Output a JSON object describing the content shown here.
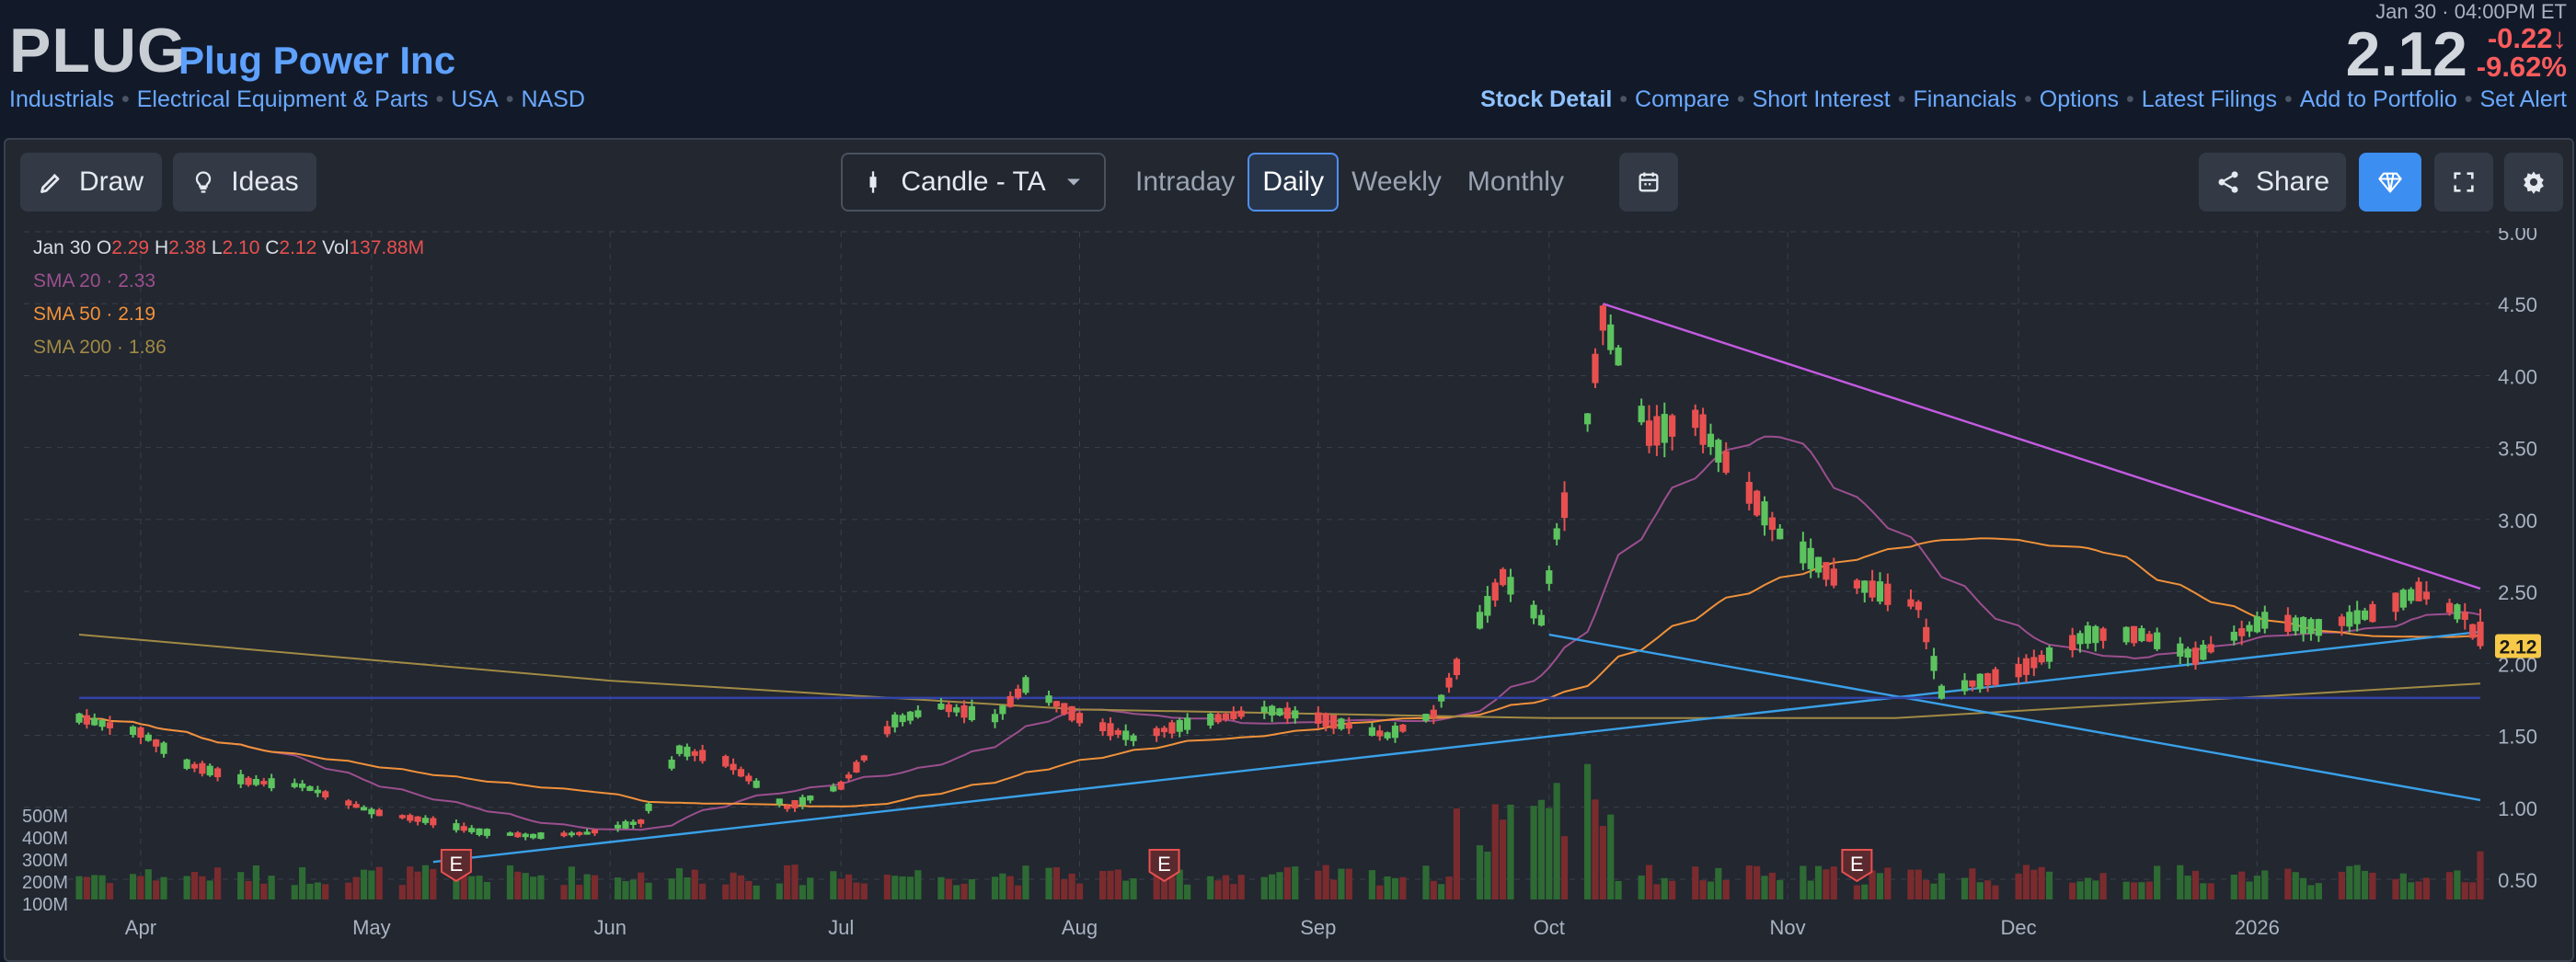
{
  "header": {
    "ticker": "PLUG",
    "company": "Plug Power Inc",
    "crumbs": [
      "Industrials",
      "Electrical Equipment & Parts",
      "USA",
      "NASD"
    ],
    "datetime": "Jan 30 · 04:00PM ET",
    "price": "2.12",
    "change_abs": "-0.22",
    "change_pct": "-9.62",
    "change_abs_arrow": "↓",
    "change_pct_unit": "%",
    "nav": [
      "Stock Detail",
      "Compare",
      "Short Interest",
      "Financials",
      "Options",
      "Latest Filings",
      "Add to Portfolio",
      "Set Alert"
    ]
  },
  "toolbar": {
    "draw": "Draw",
    "ideas": "Ideas",
    "chart_type": "Candle - TA",
    "timeframes": [
      "Intraday",
      "Daily",
      "Weekly",
      "Monthly"
    ],
    "selected_timeframe": "Daily",
    "share": "Share"
  },
  "legend": {
    "date": "Jan 30",
    "o_label": "O",
    "o": "2.29",
    "h_label": "H",
    "h": "2.38",
    "l_label": "L",
    "l": "2.10",
    "c_label": "C",
    "c": "2.12",
    "vol_label": "Vol",
    "vol": "137.88M",
    "sma20_label": "SMA 20",
    "sma20": "2.33",
    "sma50_label": "SMA 50",
    "sma50": "2.19",
    "sma200_label": "SMA 200",
    "sma200": "1.86",
    "sep": "·"
  },
  "colors": {
    "up": "#5cc35e",
    "down": "#e8504f",
    "sma20": "#9b4f8d",
    "sma50": "#f0913a",
    "sma200": "#a18a44",
    "trend_purple": "#c35be0",
    "trend_blue": "#3aa0e8",
    "hline": "#3344a8",
    "price_tag": "#f7c948"
  },
  "chart_data": {
    "type": "candlestick",
    "y_ticks": [
      "5.00",
      "4.50",
      "4.00",
      "3.50",
      "3.00",
      "2.50",
      "2.00",
      "1.50",
      "1.00",
      "0.50"
    ],
    "ylim": [
      0.5,
      5.0
    ],
    "vol_ticks": [
      "500M",
      "400M",
      "300M",
      "200M",
      "100M"
    ],
    "x_ticks": [
      "Apr",
      "May",
      "Jun",
      "Jul",
      "Aug",
      "Sep",
      "Oct",
      "Nov",
      "Dec",
      "2026"
    ],
    "last_price_tag": "2.12",
    "earnings_marker": "E",
    "earnings_months": [
      "May",
      "Aug",
      "Nov"
    ],
    "anchors": [
      [
        "2025-03-24",
        1.62
      ],
      [
        "2025-04-01",
        1.52
      ],
      [
        "2025-04-07",
        1.3
      ],
      [
        "2025-04-15",
        1.18
      ],
      [
        "2025-04-22",
        1.15
      ],
      [
        "2025-05-01",
        0.97
      ],
      [
        "2025-05-09",
        0.9
      ],
      [
        "2025-05-15",
        0.83
      ],
      [
        "2025-05-22",
        0.8
      ],
      [
        "2025-05-29",
        0.82
      ],
      [
        "2025-06-05",
        0.9
      ],
      [
        "2025-06-10",
        1.4
      ],
      [
        "2025-06-16",
        1.32
      ],
      [
        "2025-06-24",
        1.0
      ],
      [
        "2025-07-01",
        1.15
      ],
      [
        "2025-07-08",
        1.6
      ],
      [
        "2025-07-14",
        1.7
      ],
      [
        "2025-07-21",
        1.62
      ],
      [
        "2025-07-25",
        1.85
      ],
      [
        "2025-08-01",
        1.62
      ],
      [
        "2025-08-08",
        1.48
      ],
      [
        "2025-08-15",
        1.58
      ],
      [
        "2025-08-25",
        1.68
      ],
      [
        "2025-09-01",
        1.62
      ],
      [
        "2025-09-10",
        1.5
      ],
      [
        "2025-09-16",
        1.65
      ],
      [
        "2025-09-22",
        2.3
      ],
      [
        "2025-09-25",
        2.6
      ],
      [
        "2025-09-30",
        2.3
      ],
      [
        "2025-10-02",
        2.9
      ],
      [
        "2025-10-06",
        3.7
      ],
      [
        "2025-10-08",
        4.4
      ],
      [
        "2025-10-14",
        3.6
      ],
      [
        "2025-10-20",
        3.7
      ],
      [
        "2025-10-24",
        3.4
      ],
      [
        "2025-10-31",
        2.9
      ],
      [
        "2025-11-07",
        2.6
      ],
      [
        "2025-11-13",
        2.5
      ],
      [
        "2025-11-18",
        2.4
      ],
      [
        "2025-11-21",
        1.8
      ],
      [
        "2025-12-01",
        1.95
      ],
      [
        "2025-12-10",
        2.2
      ],
      [
        "2025-12-17",
        2.2
      ],
      [
        "2025-12-24",
        2.05
      ],
      [
        "2026-01-02",
        2.3
      ],
      [
        "2026-01-09",
        2.25
      ],
      [
        "2026-01-16",
        2.35
      ],
      [
        "2026-01-22",
        2.5
      ],
      [
        "2026-01-28",
        2.33
      ],
      [
        "2026-01-30",
        2.12
      ]
    ],
    "last_bar": {
      "o": 2.29,
      "h": 2.38,
      "l": 2.1,
      "c": 2.12,
      "vol_m": 137.88
    },
    "sma20_last": 2.33,
    "sma50_last": 2.19,
    "sma200_last": 1.86,
    "sma200_path": [
      [
        "2025-03-24",
        2.2
      ],
      [
        "2025-06-01",
        1.88
      ],
      [
        "2025-08-01",
        1.68
      ],
      [
        "2025-10-01",
        1.62
      ],
      [
        "2025-11-15",
        1.62
      ],
      [
        "2026-01-30",
        1.86
      ]
    ],
    "trendlines": [
      {
        "color": "trend_purple",
        "from": [
          "2025-10-08",
          4.5
        ],
        "to": [
          "2026-01-30",
          2.52
        ]
      },
      {
        "color": "trend_blue",
        "from": [
          "2025-05-09",
          0.62
        ],
        "to": [
          "2026-01-30",
          2.22
        ]
      },
      {
        "color": "trend_blue",
        "from": [
          "2025-10-01",
          2.2
        ],
        "to": [
          "2026-01-30",
          1.05
        ]
      },
      {
        "color": "hline",
        "from": [
          "2025-03-24",
          1.76
        ],
        "to": [
          "2026-01-30",
          1.76
        ]
      }
    ]
  }
}
